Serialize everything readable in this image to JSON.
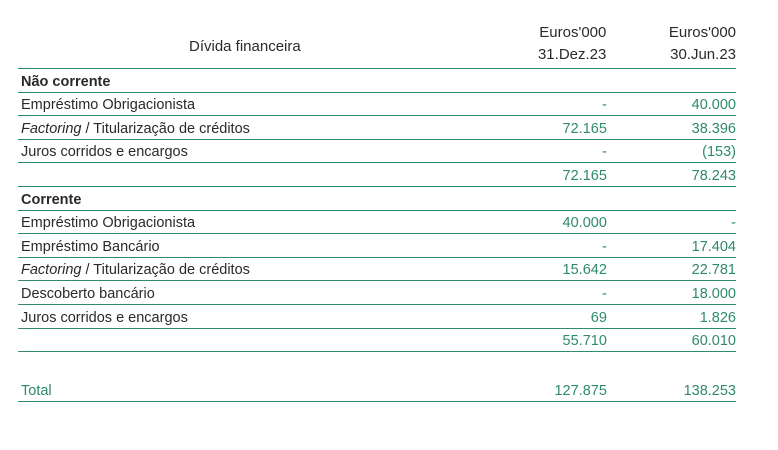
{
  "header": {
    "title": "Dívida financeira",
    "col1_unit": "Euros'000",
    "col1_date": "31.Dez.23",
    "col2_unit": "Euros'000",
    "col2_date": "30.Jun.23"
  },
  "nao_corrente": {
    "title": "Não corrente",
    "rows": [
      {
        "label": "Empréstimo Obrigacionista",
        "v1": "-",
        "v2": "40.000"
      },
      {
        "label_italic": "Factoring",
        "label_rest": " / Titularização de créditos",
        "v1": "72.165",
        "v2": "38.396"
      },
      {
        "label": "Juros corridos e encargos",
        "v1": "-",
        "v2": "(153)"
      }
    ],
    "subtotal": {
      "v1": "72.165",
      "v2": "78.243"
    }
  },
  "corrente": {
    "title": "Corrente",
    "rows": [
      {
        "label": "Empréstimo Obrigacionista",
        "v1": "40.000",
        "v2": "-"
      },
      {
        "label": "Empréstimo Bancário",
        "v1": "-",
        "v2": "17.404"
      },
      {
        "label_italic": "Factoring",
        "label_rest": " / Titularização de créditos",
        "v1": "15.642",
        "v2": "22.781"
      },
      {
        "label": "Descoberto bancário",
        "v1": "-",
        "v2": "18.000"
      },
      {
        "label": "Juros corridos e encargos",
        "v1": "69",
        "v2": "1.826"
      }
    ],
    "subtotal": {
      "v1": "55.710",
      "v2": "60.010"
    }
  },
  "total": {
    "label": "Total",
    "v1": "127.875",
    "v2": "138.253"
  },
  "colors": {
    "accent": "#2e8a68",
    "text": "#2a2a2a"
  }
}
